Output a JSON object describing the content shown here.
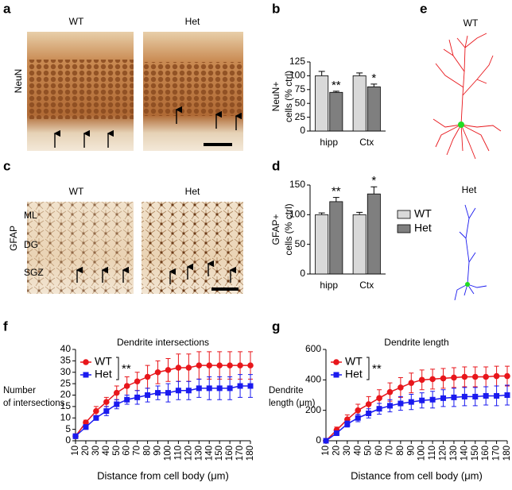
{
  "panel_labels": [
    "a",
    "b",
    "c",
    "d",
    "e",
    "f",
    "g"
  ],
  "micrographs": {
    "neun": {
      "stain": "NeuN",
      "titles": [
        "WT",
        "Het"
      ]
    },
    "gfap": {
      "stain": "GFAP",
      "titles": [
        "WT",
        "Het"
      ],
      "layers": [
        "ML",
        "DG",
        "SGZ"
      ]
    }
  },
  "tracings": {
    "titles": [
      "WT",
      "Het"
    ]
  },
  "chart_data": [
    {
      "type": "bar",
      "ylabel": [
        "NeuN+",
        "cells (% ctrl)"
      ],
      "categories": [
        "hipp",
        "Ctx"
      ],
      "ylim": [
        0,
        125
      ],
      "yticks": [
        0,
        25,
        50,
        75,
        100,
        125
      ],
      "series": [
        {
          "color": "#d9d9d9",
          "values": [
            100,
            100
          ],
          "errors": [
            8,
            5
          ]
        },
        {
          "color": "#7f7f7f",
          "values": [
            70,
            80
          ],
          "errors": [
            2,
            5
          ],
          "significance": [
            "**",
            "*"
          ]
        }
      ]
    },
    {
      "type": "bar",
      "ylabel": [
        "GFAP+",
        "cells (% ctrl)"
      ],
      "categories": [
        "hipp",
        "Ctx"
      ],
      "ylim": [
        0,
        150
      ],
      "yticks": [
        0,
        50,
        100,
        150
      ],
      "legend": "right",
      "series": [
        {
          "name": "WT",
          "color": "#d9d9d9",
          "values": [
            100,
            100
          ],
          "errors": [
            3,
            4
          ]
        },
        {
          "name": "Het",
          "color": "#7f7f7f",
          "values": [
            122,
            135
          ],
          "errors": [
            7,
            12
          ],
          "significance": [
            "**",
            "*"
          ]
        }
      ]
    },
    {
      "type": "line",
      "title": "Dendrite intersections",
      "ylabel": [
        "Number",
        "of intersections"
      ],
      "xlabel": "Distance from cell body (μm)",
      "x": [
        10,
        20,
        30,
        40,
        50,
        60,
        70,
        80,
        90,
        100,
        110,
        120,
        130,
        140,
        150,
        160,
        170,
        180
      ],
      "xticks": [
        10,
        20,
        30,
        40,
        50,
        60,
        70,
        80,
        90,
        100,
        110,
        120,
        130,
        140,
        150,
        160,
        170,
        180
      ],
      "xlim": [
        10,
        180
      ],
      "ylim": [
        0,
        40
      ],
      "yticks": [
        0,
        5,
        10,
        15,
        20,
        25,
        30,
        35,
        40
      ],
      "legend": "upper left",
      "annotation": "**",
      "series": [
        {
          "name": "WT",
          "color": "#e8161b",
          "marker": "circle",
          "values": [
            2,
            8,
            13,
            17,
            21,
            24,
            26,
            28,
            30,
            31,
            32,
            32,
            33,
            33,
            33,
            33,
            33,
            33
          ],
          "errors": [
            1,
            1,
            2,
            2,
            3,
            4,
            4,
            5,
            5,
            5,
            6,
            6,
            6,
            6,
            6,
            6,
            6,
            6
          ]
        },
        {
          "name": "Het",
          "color": "#1a1aef",
          "marker": "square",
          "values": [
            2,
            6,
            10,
            13,
            16,
            18,
            19,
            20,
            21,
            21,
            22,
            22,
            23,
            23,
            23,
            23,
            24,
            24
          ],
          "errors": [
            1,
            1,
            1,
            2,
            2,
            2,
            3,
            3,
            3,
            4,
            4,
            4,
            4,
            5,
            5,
            5,
            5,
            5
          ]
        }
      ]
    },
    {
      "type": "line",
      "title": "Dendrite length",
      "ylabel": [
        "Dendrite",
        "length (μm)"
      ],
      "xlabel": "Distance from cell body (μm)",
      "x": [
        10,
        20,
        30,
        40,
        50,
        60,
        70,
        80,
        90,
        100,
        110,
        120,
        130,
        140,
        150,
        160,
        170,
        180
      ],
      "xticks": [
        10,
        20,
        30,
        40,
        50,
        60,
        70,
        80,
        90,
        100,
        110,
        120,
        130,
        140,
        150,
        160,
        170,
        180
      ],
      "xlim": [
        10,
        180
      ],
      "ylim": [
        0,
        600
      ],
      "yticks": [
        0,
        200,
        400,
        600
      ],
      "legend": "upper left",
      "annotation": "**",
      "series": [
        {
          "name": "WT",
          "color": "#e8161b",
          "marker": "circle",
          "values": [
            0,
            70,
            140,
            200,
            240,
            280,
            320,
            350,
            380,
            400,
            405,
            410,
            415,
            420,
            420,
            420,
            425,
            425
          ],
          "errors": [
            0,
            20,
            30,
            40,
            50,
            55,
            60,
            65,
            65,
            65,
            65,
            65,
            65,
            65,
            65,
            65,
            65,
            65
          ]
        },
        {
          "name": "Het",
          "color": "#1a1aef",
          "marker": "square",
          "values": [
            0,
            50,
            110,
            150,
            180,
            210,
            230,
            245,
            255,
            265,
            270,
            280,
            285,
            290,
            290,
            295,
            295,
            300
          ],
          "errors": [
            0,
            15,
            20,
            25,
            30,
            35,
            40,
            45,
            50,
            50,
            55,
            55,
            60,
            60,
            60,
            60,
            65,
            65
          ]
        }
      ]
    }
  ]
}
